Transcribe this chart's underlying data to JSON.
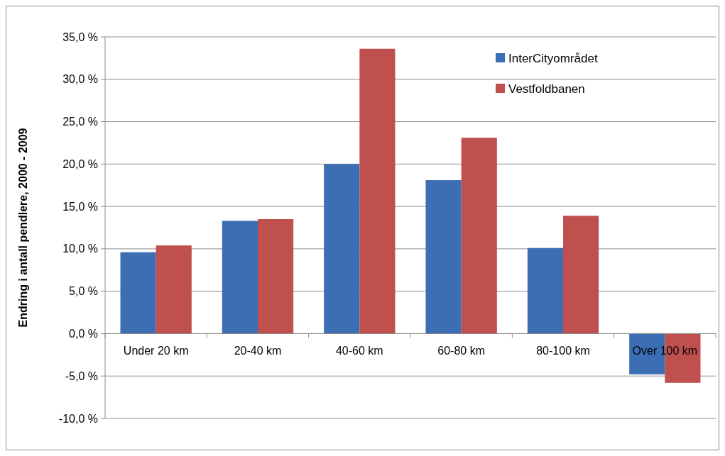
{
  "chart_data": {
    "type": "bar",
    "ylabel": "Endring i antall pendlere, 2000 - 2009",
    "categories": [
      "Under 20 km",
      "20-40 km",
      "40-60 km",
      "60-80 km",
      "80-100 km",
      "Over 100 km"
    ],
    "series": [
      {
        "name": "InterCityområdet",
        "color": "#3c6eb4",
        "values": [
          9.6,
          13.3,
          20.0,
          18.1,
          10.1,
          -4.8
        ]
      },
      {
        "name": "Vestfoldbanen",
        "color": "#c0504d",
        "values": [
          10.4,
          13.5,
          33.6,
          23.1,
          13.9,
          -5.8
        ]
      }
    ],
    "ylim": [
      -10,
      35
    ],
    "yticks": [
      {
        "value": -10,
        "label": "-10,0 %"
      },
      {
        "value": -5,
        "label": "-5,0 %"
      },
      {
        "value": 0,
        "label": "0,0 %"
      },
      {
        "value": 5,
        "label": "5,0 %"
      },
      {
        "value": 10,
        "label": "10,0 %"
      },
      {
        "value": 15,
        "label": "15,0 %"
      },
      {
        "value": 20,
        "label": "20,0 %"
      },
      {
        "value": 25,
        "label": "25,0 %"
      },
      {
        "value": 30,
        "label": "30,0 %"
      },
      {
        "value": 35,
        "label": "35,0 %"
      }
    ],
    "grid": "y",
    "legend": "top right"
  }
}
